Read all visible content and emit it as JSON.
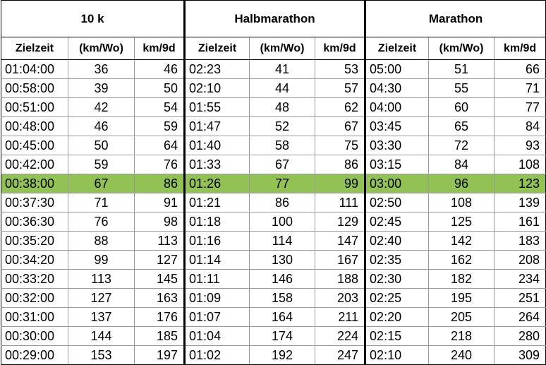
{
  "groups": [
    "10 k",
    "Halbmarathon",
    "Marathon"
  ],
  "subheaders": [
    "Zielzeit",
    "(km/Wo)",
    "km/9d"
  ],
  "highlight_color": "#92c255",
  "highlight_row_index": 6,
  "rows": [
    [
      "01:04:00",
      "36",
      "46",
      "02:23",
      "41",
      "53",
      "05:00",
      "51",
      "66"
    ],
    [
      "00:58:00",
      "39",
      "50",
      "02:10",
      "44",
      "57",
      "04:30",
      "55",
      "71"
    ],
    [
      "00:51:00",
      "42",
      "54",
      "01:55",
      "48",
      "62",
      "04:00",
      "60",
      "77"
    ],
    [
      "00:48:00",
      "46",
      "59",
      "01:47",
      "52",
      "67",
      "03:45",
      "65",
      "84"
    ],
    [
      "00:45:00",
      "50",
      "64",
      "01:40",
      "58",
      "75",
      "03:30",
      "72",
      "93"
    ],
    [
      "00:42:00",
      "59",
      "76",
      "01:33",
      "67",
      "86",
      "03:15",
      "84",
      "108"
    ],
    [
      "00:38:00",
      "67",
      "86",
      "01:26",
      "77",
      "99",
      "03:00",
      "96",
      "123"
    ],
    [
      "00:37:30",
      "71",
      "91",
      "01:21",
      "86",
      "111",
      "02:50",
      "108",
      "139"
    ],
    [
      "00:36:30",
      "76",
      "98",
      "01:18",
      "100",
      "129",
      "02:45",
      "125",
      "161"
    ],
    [
      "00:35:20",
      "88",
      "113",
      "01:16",
      "114",
      "147",
      "02:40",
      "142",
      "183"
    ],
    [
      "00:34:20",
      "99",
      "127",
      "01:14",
      "130",
      "167",
      "02:35",
      "162",
      "208"
    ],
    [
      "00:33:20",
      "113",
      "145",
      "01:11",
      "146",
      "188",
      "02:30",
      "182",
      "234"
    ],
    [
      "00:32:00",
      "127",
      "163",
      "01:09",
      "158",
      "203",
      "02:25",
      "195",
      "251"
    ],
    [
      "00:31:00",
      "137",
      "176",
      "01:07",
      "164",
      "211",
      "02:20",
      "205",
      "264"
    ],
    [
      "00:30:00",
      "144",
      "185",
      "01:04",
      "174",
      "224",
      "02:15",
      "218",
      "280"
    ],
    [
      "00:29:00",
      "153",
      "197",
      "01:02",
      "192",
      "247",
      "02:10",
      "240",
      "309"
    ]
  ]
}
